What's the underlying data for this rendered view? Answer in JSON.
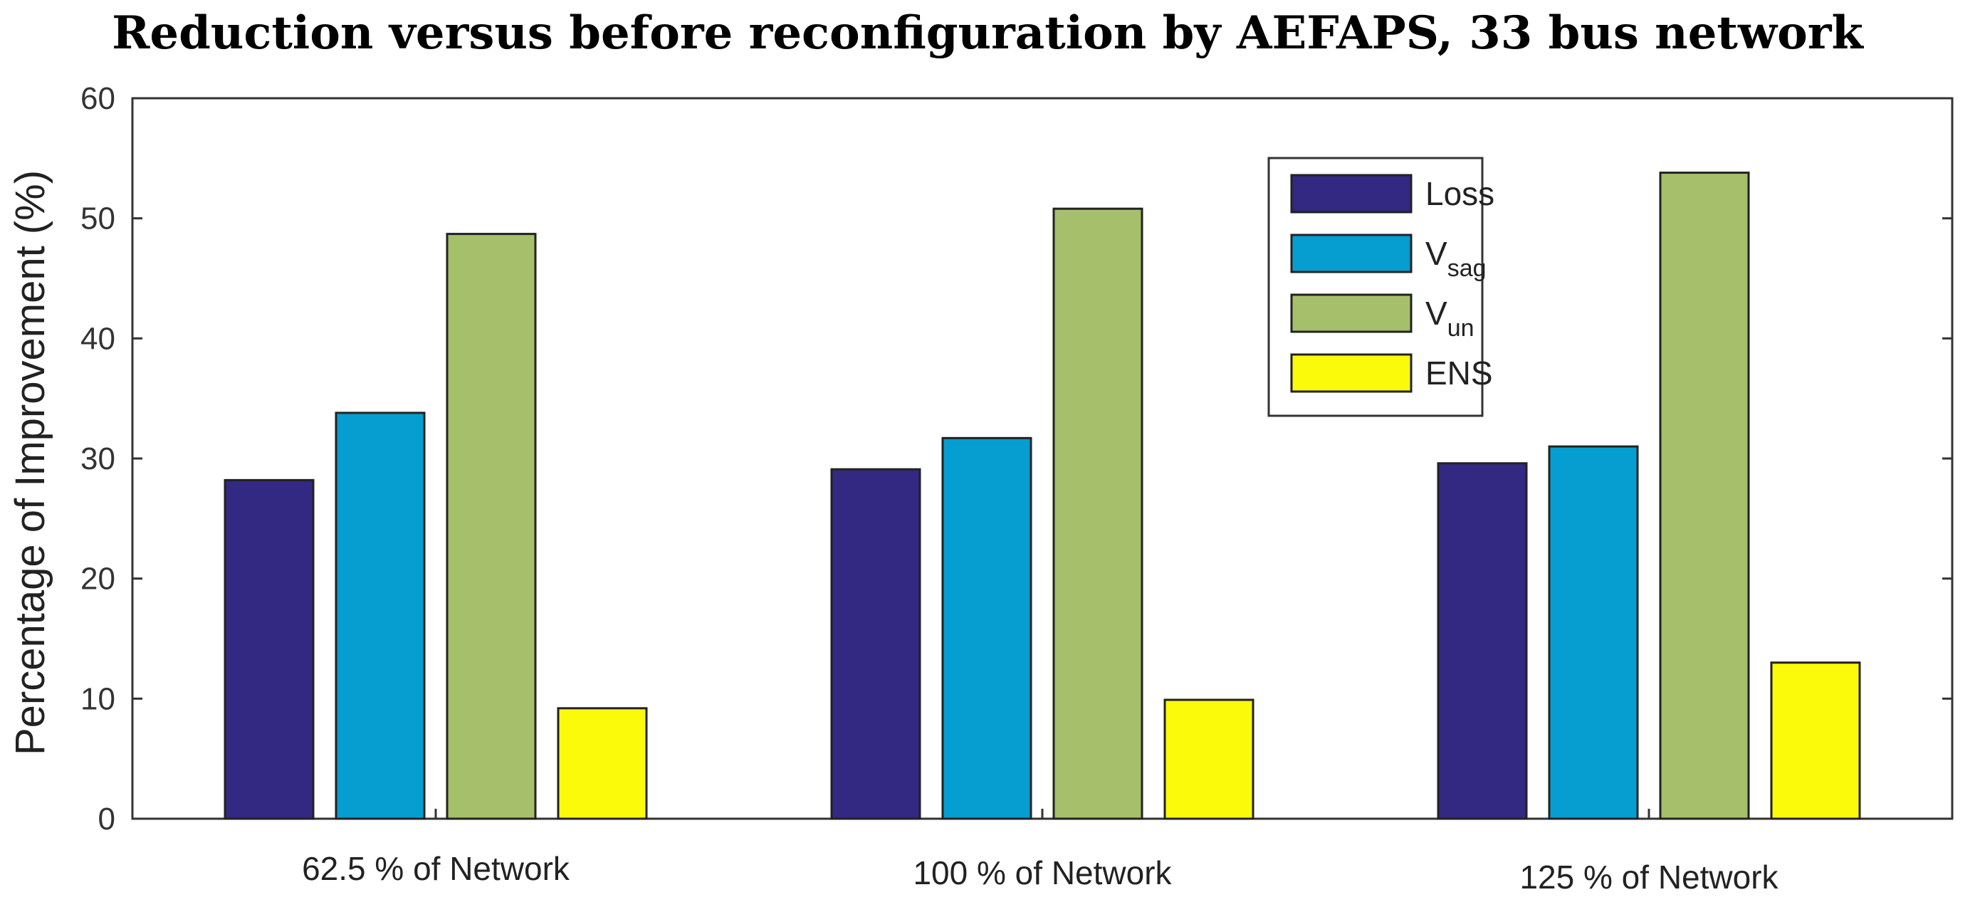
{
  "chart_data": {
    "type": "bar",
    "title": "Reduction versus before reconfiguration by AEFAPS, 33 bus network",
    "xlabel": "",
    "ylabel": "Percentage of Improvement (%)",
    "ylim": [
      0,
      60
    ],
    "yticks": [
      0,
      10,
      20,
      30,
      40,
      50,
      60
    ],
    "categories": [
      "62.5 % of Network",
      "100 % of Network",
      "125 % of Network"
    ],
    "series": [
      {
        "name": "Loss",
        "name_main": "Loss",
        "name_sub": "",
        "color": "#332882",
        "values": [
          28.2,
          29.1,
          29.6
        ]
      },
      {
        "name": "Vsag",
        "name_main": "V",
        "name_sub": "sag",
        "color": "#069ed0",
        "values": [
          33.8,
          31.7,
          31.0
        ]
      },
      {
        "name": "Vun",
        "name_main": "V",
        "name_sub": "un",
        "color": "#a6bf6a",
        "values": [
          48.7,
          50.8,
          53.8
        ]
      },
      {
        "name": "ENS",
        "name_main": "ENS",
        "name_sub": "",
        "color": "#fafa0a",
        "values": [
          9.2,
          9.9,
          13.0
        ]
      }
    ],
    "legend": "top-right",
    "grid": false
  }
}
